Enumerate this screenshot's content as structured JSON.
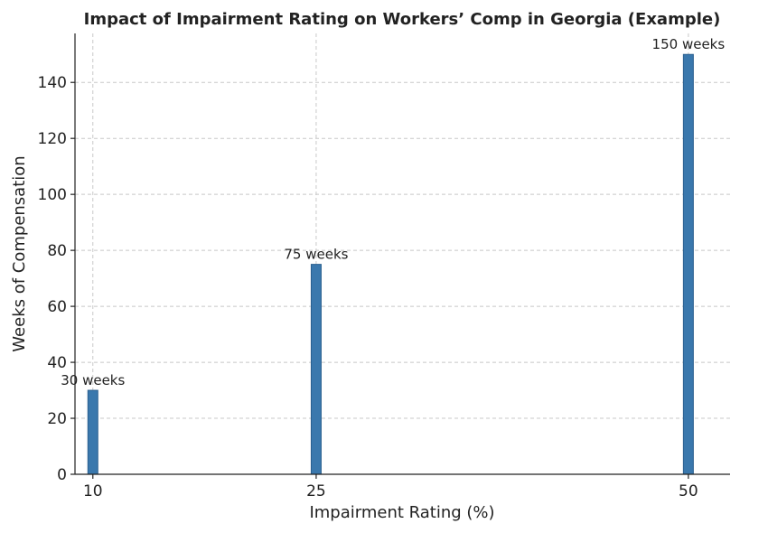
{
  "chart_data": {
    "type": "bar",
    "title": "Impact of Impairment Rating on Workers’ Comp in Georgia (Example)",
    "xlabel": "Impairment Rating (%)",
    "ylabel": "Weeks of Compensation",
    "x": [
      10,
      25,
      50
    ],
    "values": [
      30,
      75,
      150
    ],
    "data_labels": [
      "30 weeks",
      "75 weeks",
      "150 weeks"
    ],
    "xlim": [
      8.8,
      52.8
    ],
    "ylim": [
      0,
      157.5
    ],
    "x_ticks": [
      10,
      25,
      50
    ],
    "y_ticks": [
      0,
      20,
      40,
      60,
      80,
      100,
      120,
      140
    ],
    "grid": true,
    "bar_color": "#3a78ad",
    "bar_edge_color": "#2a5f8f"
  }
}
